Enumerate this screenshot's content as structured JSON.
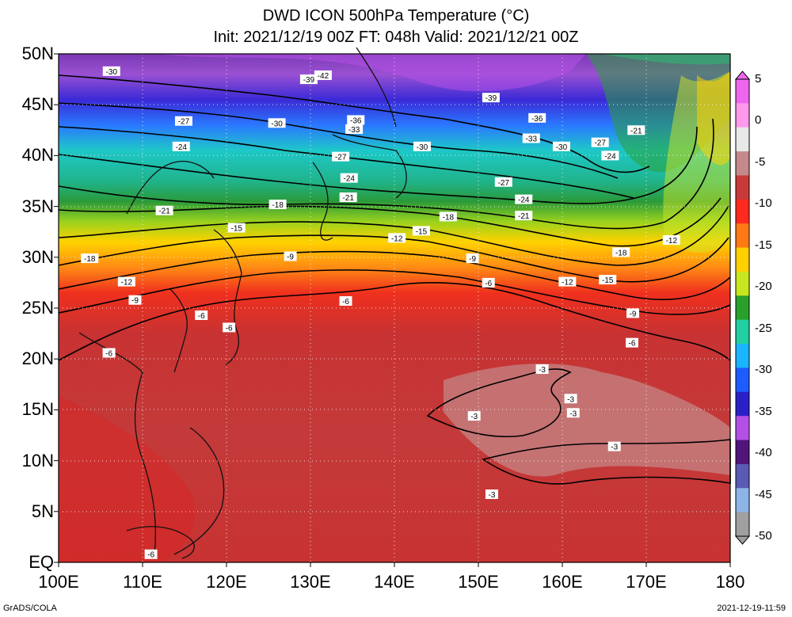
{
  "title": {
    "line1": "DWD ICON 500hPa Temperature (°C)",
    "line2": "Init: 2021/12/19 00Z  FT: 048h  Valid: 2021/12/21 00Z"
  },
  "map_data": {
    "lon_range": [
      100,
      180
    ],
    "lat_range": [
      0,
      50
    ],
    "grid": true,
    "y_ticks": [
      {
        "lat": 50,
        "label": "50N"
      },
      {
        "lat": 45,
        "label": "45N"
      },
      {
        "lat": 40,
        "label": "40N"
      },
      {
        "lat": 35,
        "label": "35N"
      },
      {
        "lat": 30,
        "label": "30N"
      },
      {
        "lat": 25,
        "label": "25N"
      },
      {
        "lat": 20,
        "label": "20N"
      },
      {
        "lat": 15,
        "label": "15N"
      },
      {
        "lat": 10,
        "label": "10N"
      },
      {
        "lat": 5,
        "label": "5N"
      },
      {
        "lat": 0,
        "label": "EQ"
      }
    ],
    "x_ticks": [
      {
        "lon": 100,
        "label": "100E"
      },
      {
        "lon": 110,
        "label": "110E"
      },
      {
        "lon": 120,
        "label": "120E"
      },
      {
        "lon": 130,
        "label": "130E"
      },
      {
        "lon": 140,
        "label": "140E"
      },
      {
        "lon": 150,
        "label": "150E"
      },
      {
        "lon": 160,
        "label": "160E"
      },
      {
        "lon": 170,
        "label": "170E"
      },
      {
        "lon": 180,
        "label": "180"
      }
    ],
    "contour_labels": [
      {
        "lon": 106.3,
        "lat": 48.3,
        "text": "-30"
      },
      {
        "lon": 129.8,
        "lat": 47.5,
        "text": "-39"
      },
      {
        "lon": 131.5,
        "lat": 47.9,
        "text": "-42"
      },
      {
        "lon": 151.5,
        "lat": 45.7,
        "text": "-39"
      },
      {
        "lon": 114.9,
        "lat": 43.4,
        "text": "-27"
      },
      {
        "lon": 126.0,
        "lat": 43.2,
        "text": "-30"
      },
      {
        "lon": 135.4,
        "lat": 43.5,
        "text": "-36"
      },
      {
        "lon": 135.2,
        "lat": 42.6,
        "text": "-33"
      },
      {
        "lon": 157.0,
        "lat": 43.7,
        "text": "-36"
      },
      {
        "lon": 168.8,
        "lat": 42.5,
        "text": "-21"
      },
      {
        "lon": 114.6,
        "lat": 40.9,
        "text": "-24"
      },
      {
        "lon": 133.6,
        "lat": 39.9,
        "text": "-27"
      },
      {
        "lon": 143.3,
        "lat": 40.9,
        "text": "-30"
      },
      {
        "lon": 156.3,
        "lat": 41.7,
        "text": "-33"
      },
      {
        "lon": 159.9,
        "lat": 40.9,
        "text": "-30"
      },
      {
        "lon": 164.5,
        "lat": 41.3,
        "text": "-27"
      },
      {
        "lon": 165.7,
        "lat": 40.0,
        "text": "-24"
      },
      {
        "lon": 134.6,
        "lat": 37.8,
        "text": "-24"
      },
      {
        "lon": 153.0,
        "lat": 37.4,
        "text": "-27"
      },
      {
        "lon": 112.6,
        "lat": 34.6,
        "text": "-21"
      },
      {
        "lon": 126.1,
        "lat": 35.2,
        "text": "-18"
      },
      {
        "lon": 134.5,
        "lat": 35.9,
        "text": "-21"
      },
      {
        "lon": 155.4,
        "lat": 35.7,
        "text": "-24"
      },
      {
        "lon": 155.4,
        "lat": 34.1,
        "text": "-21"
      },
      {
        "lon": 146.4,
        "lat": 34.0,
        "text": "-18"
      },
      {
        "lon": 121.2,
        "lat": 32.9,
        "text": "-15"
      },
      {
        "lon": 143.2,
        "lat": 32.6,
        "text": "-15"
      },
      {
        "lon": 140.3,
        "lat": 31.9,
        "text": "-12"
      },
      {
        "lon": 103.7,
        "lat": 29.9,
        "text": "-18"
      },
      {
        "lon": 127.6,
        "lat": 30.1,
        "text": "-9"
      },
      {
        "lon": 149.3,
        "lat": 29.9,
        "text": "-9"
      },
      {
        "lon": 167.0,
        "lat": 30.5,
        "text": "-18"
      },
      {
        "lon": 173.0,
        "lat": 31.7,
        "text": "-12"
      },
      {
        "lon": 108.1,
        "lat": 27.6,
        "text": "-12"
      },
      {
        "lon": 151.2,
        "lat": 27.5,
        "text": "-6"
      },
      {
        "lon": 160.6,
        "lat": 27.6,
        "text": "-12"
      },
      {
        "lon": 165.4,
        "lat": 27.8,
        "text": "-15"
      },
      {
        "lon": 109.1,
        "lat": 25.8,
        "text": "-9"
      },
      {
        "lon": 134.2,
        "lat": 25.7,
        "text": "-6"
      },
      {
        "lon": 168.4,
        "lat": 24.5,
        "text": "-9"
      },
      {
        "lon": 117.0,
        "lat": 24.3,
        "text": "-6"
      },
      {
        "lon": 120.3,
        "lat": 23.1,
        "text": "-6"
      },
      {
        "lon": 106.0,
        "lat": 20.6,
        "text": "-6"
      },
      {
        "lon": 168.3,
        "lat": 21.6,
        "text": "-6"
      },
      {
        "lon": 157.6,
        "lat": 19.0,
        "text": "-3"
      },
      {
        "lon": 161.0,
        "lat": 16.1,
        "text": "-3"
      },
      {
        "lon": 161.3,
        "lat": 14.7,
        "text": "-3"
      },
      {
        "lon": 149.5,
        "lat": 14.4,
        "text": "-3"
      },
      {
        "lon": 166.2,
        "lat": 11.4,
        "text": "-3"
      },
      {
        "lon": 151.6,
        "lat": 6.7,
        "text": "-3"
      },
      {
        "lon": 111.0,
        "lat": 0.8,
        "text": "-6"
      }
    ]
  },
  "colorbar": {
    "levels": [
      5,
      0,
      -5,
      -10,
      -15,
      -20,
      -25,
      -30,
      -35,
      -40,
      -45,
      -50
    ],
    "labels": [
      "5",
      "0",
      "-5",
      "-10",
      "-15",
      "-20",
      "-25",
      "-30",
      "-35",
      "-40",
      "-45",
      "-50"
    ],
    "colors": [
      "#ee66ee",
      "#ff99ee",
      "#e8e8e8",
      "#c48a8a",
      "#c83a3a",
      "#ff2a1e",
      "#ff7a14",
      "#ffd000",
      "#c8e61e",
      "#2aa02a",
      "#20d0a0",
      "#1ab4ff",
      "#1e5cff",
      "#2a20c8",
      "#b450e6",
      "#50147a",
      "#5a5ab4",
      "#8cb4e6",
      "#a0a0a0"
    ]
  },
  "footer": {
    "credit": "GrADS/COLA",
    "timestamp": "2021-12-19-11:59"
  }
}
